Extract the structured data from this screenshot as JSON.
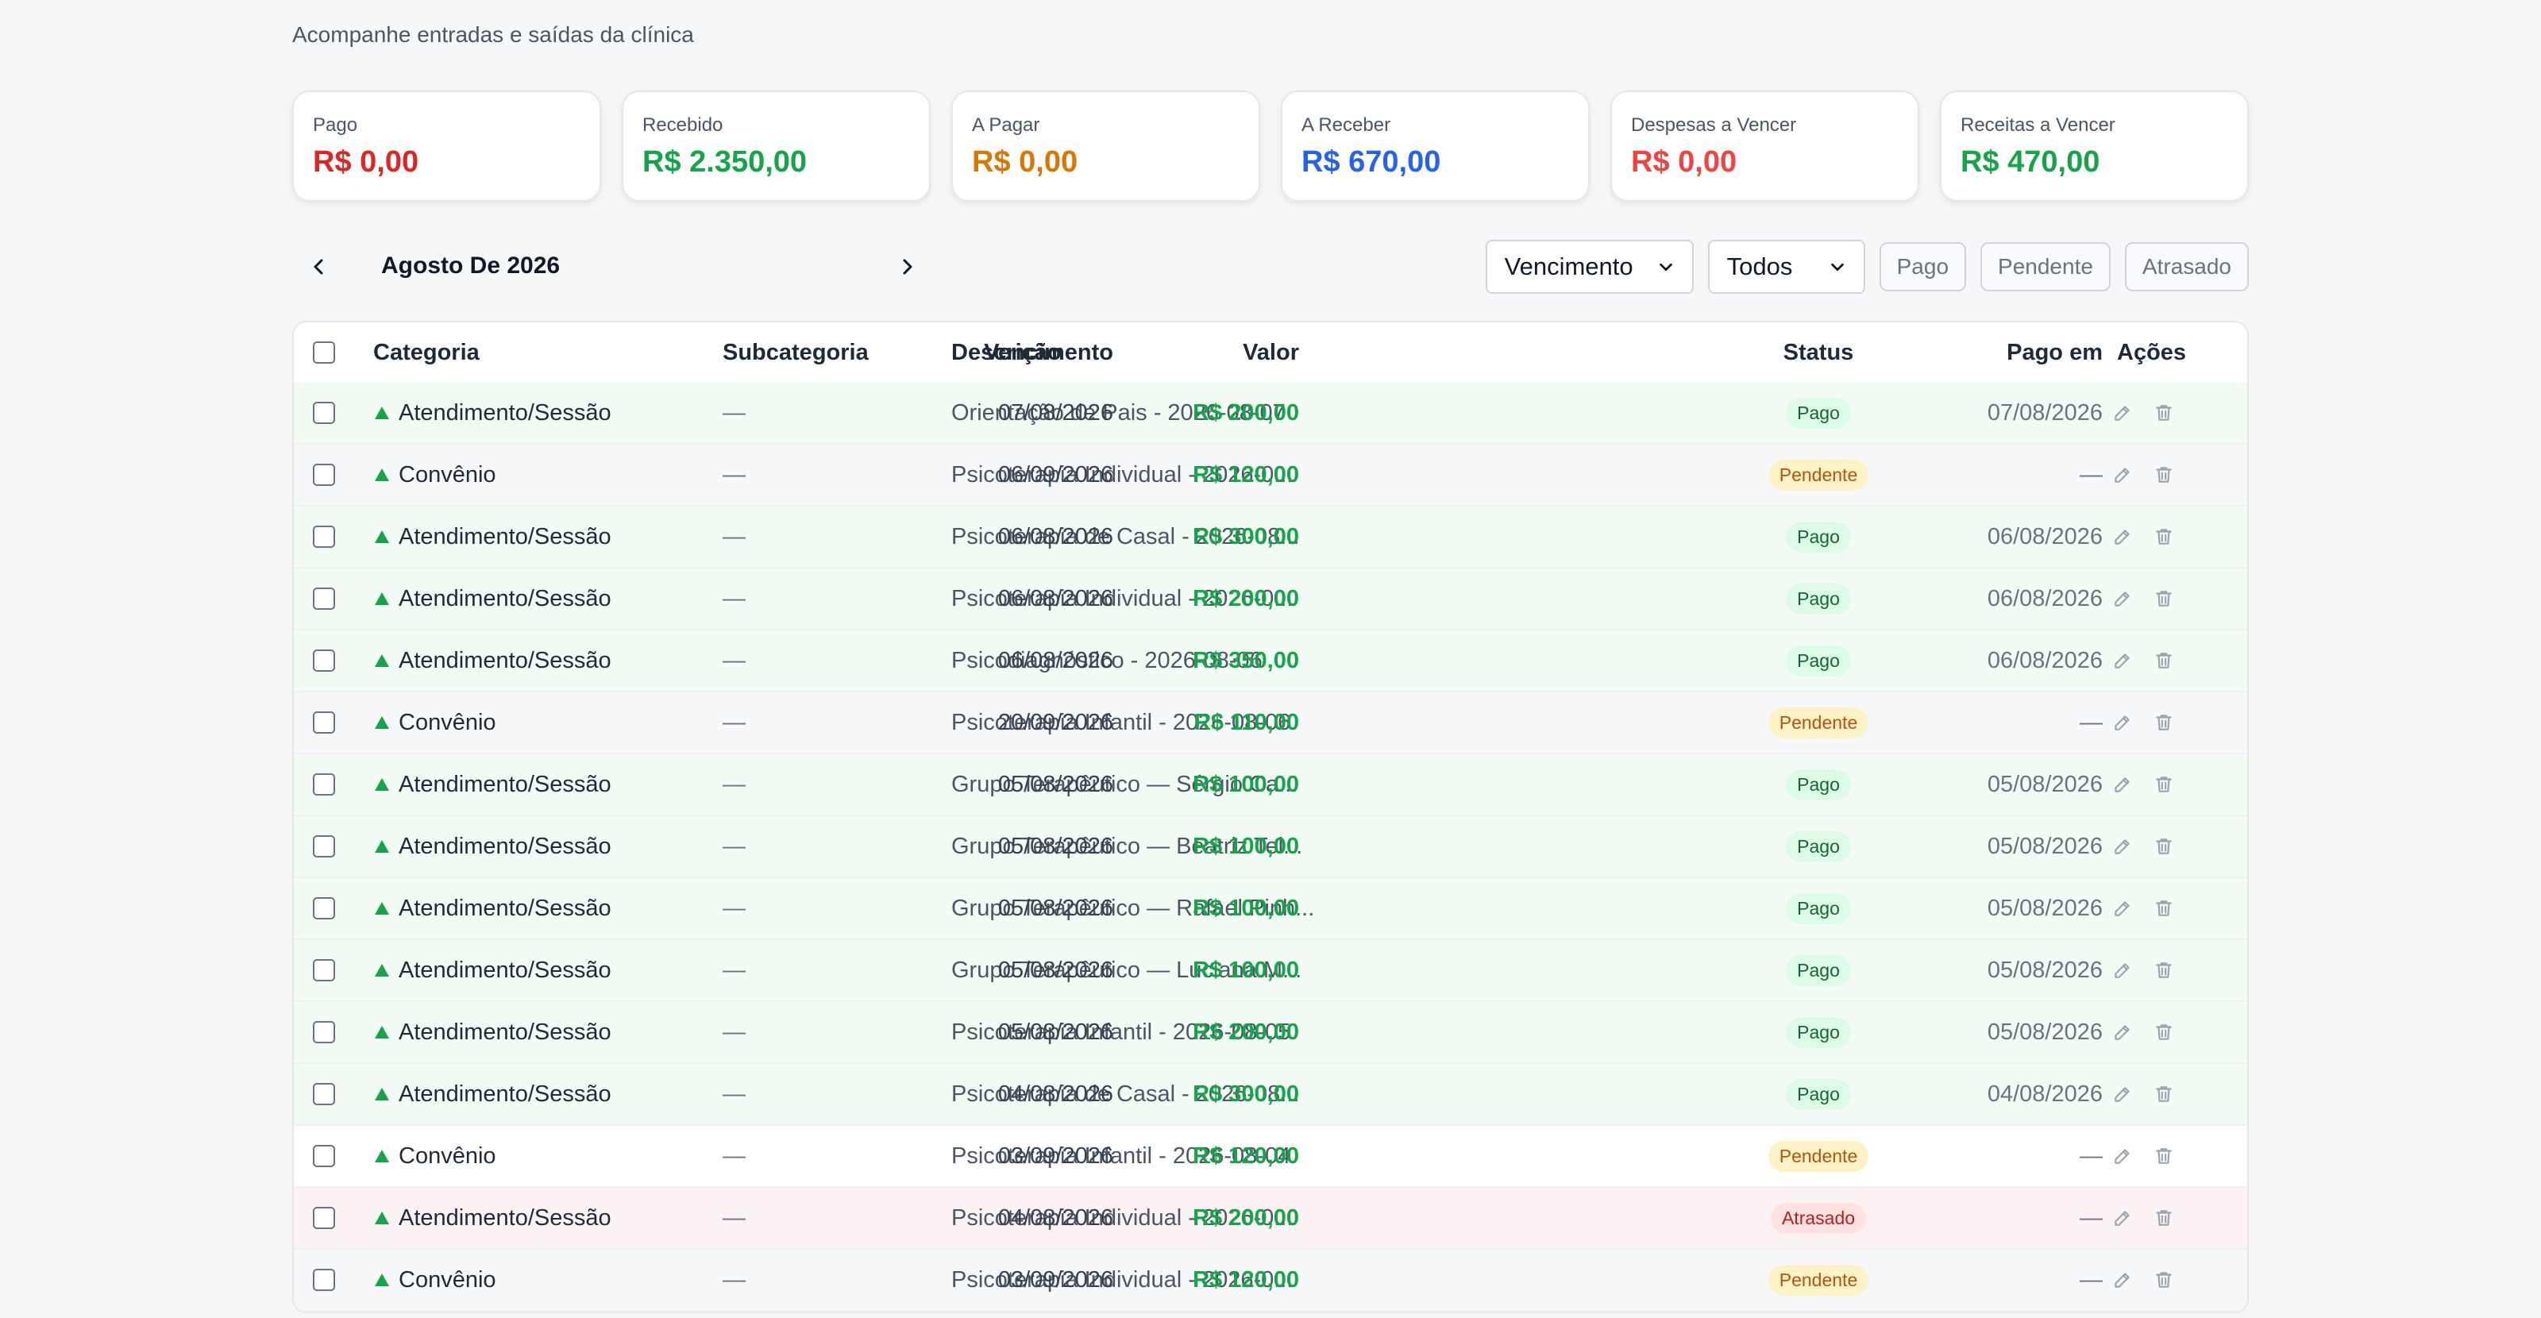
{
  "page": {
    "subtitle": "Acompanhe entradas e saídas da clínica"
  },
  "cards": [
    {
      "label": "Pago",
      "value": "R$ 0,00",
      "color": "#dc2626"
    },
    {
      "label": "Recebido",
      "value": "R$ 2.350,00",
      "color": "#16a34a"
    },
    {
      "label": "A Pagar",
      "value": "R$ 0,00",
      "color": "#d97706"
    },
    {
      "label": "A Receber",
      "value": "R$ 670,00",
      "color": "#2563eb"
    },
    {
      "label": "Despesas a Vencer",
      "value": "R$ 0,00",
      "color": "#ef4444"
    },
    {
      "label": "Receitas a Vencer",
      "value": "R$ 470,00",
      "color": "#16a34a"
    }
  ],
  "toolbar": {
    "month_label": "Agosto De 2026",
    "date_filter": "Vencimento",
    "type_filter": "Todos",
    "chips": [
      "Pago",
      "Pendente",
      "Atrasado"
    ]
  },
  "table": {
    "headers": {
      "categoria": "Categoria",
      "subcategoria": "Subcategoria",
      "descricao": "Descrição",
      "vencimento": "Vencimento",
      "valor": "Valor",
      "status": "Status",
      "pago_em": "Pago em",
      "acoes": "Ações"
    },
    "rows": [
      {
        "categoria": "Atendimento/Sessão",
        "subcategoria": "—",
        "descricao": "Orientação de Pais - 2026-08-07",
        "vencimento": "07/08/2026",
        "valor": "R$ 200,00",
        "status": "Pago",
        "pago_em": "07/08/2026"
      },
      {
        "categoria": "Convênio",
        "subcategoria": "—",
        "descricao": "Psicoterapia Individual - 2026-0...",
        "vencimento": "06/09/2026",
        "valor": "R$ 120,00",
        "status": "Pendente",
        "pago_em": "—"
      },
      {
        "categoria": "Atendimento/Sessão",
        "subcategoria": "—",
        "descricao": "Psicoterapia de Casal - 2026-08...",
        "vencimento": "06/08/2026",
        "valor": "R$ 300,00",
        "status": "Pago",
        "pago_em": "06/08/2026"
      },
      {
        "categoria": "Atendimento/Sessão",
        "subcategoria": "—",
        "descricao": "Psicoterapia Individual - 2026-0...",
        "vencimento": "06/08/2026",
        "valor": "R$ 200,00",
        "status": "Pago",
        "pago_em": "06/08/2026"
      },
      {
        "categoria": "Atendimento/Sessão",
        "subcategoria": "—",
        "descricao": "Psicodiagnóstico - 2026-08-06",
        "vencimento": "06/08/2026",
        "valor": "R$ 350,00",
        "status": "Pago",
        "pago_em": "06/08/2026"
      },
      {
        "categoria": "Convênio",
        "subcategoria": "—",
        "descricao": "Psicoterapia Infantil - 2026-08-06",
        "vencimento": "20/09/2026",
        "valor": "R$ 110,00",
        "status": "Pendente",
        "pago_em": "—"
      },
      {
        "categoria": "Atendimento/Sessão",
        "subcategoria": "—",
        "descricao": "Grupo Terapêutico — Sérgio Ca...",
        "vencimento": "05/08/2026",
        "valor": "R$ 100,00",
        "status": "Pago",
        "pago_em": "05/08/2026"
      },
      {
        "categoria": "Atendimento/Sessão",
        "subcategoria": "—",
        "descricao": "Grupo Terapêutico — Beatriz Tel...",
        "vencimento": "05/08/2026",
        "valor": "R$ 100,00",
        "status": "Pago",
        "pago_em": "05/08/2026"
      },
      {
        "categoria": "Atendimento/Sessão",
        "subcategoria": "—",
        "descricao": "Grupo Terapêutico — Rafael Pinh...",
        "vencimento": "05/08/2026",
        "valor": "R$ 100,00",
        "status": "Pago",
        "pago_em": "05/08/2026"
      },
      {
        "categoria": "Atendimento/Sessão",
        "subcategoria": "—",
        "descricao": "Grupo Terapêutico — Luciana M...",
        "vencimento": "05/08/2026",
        "valor": "R$ 100,00",
        "status": "Pago",
        "pago_em": "05/08/2026"
      },
      {
        "categoria": "Atendimento/Sessão",
        "subcategoria": "—",
        "descricao": "Psicoterapia Infantil - 2026-08-05",
        "vencimento": "05/08/2026",
        "valor": "R$ 200,00",
        "status": "Pago",
        "pago_em": "05/08/2026"
      },
      {
        "categoria": "Atendimento/Sessão",
        "subcategoria": "—",
        "descricao": "Psicoterapia de Casal - 2026-08...",
        "vencimento": "04/08/2026",
        "valor": "R$ 300,00",
        "status": "Pago",
        "pago_em": "04/08/2026"
      },
      {
        "categoria": "Convênio",
        "subcategoria": "—",
        "descricao": "Psicoterapia Infantil - 2026-08-04",
        "vencimento": "03/09/2026",
        "valor": "R$ 120,00",
        "status": "Pendente",
        "pago_em": "—"
      },
      {
        "categoria": "Atendimento/Sessão",
        "subcategoria": "—",
        "descricao": "Psicoterapia Individual - 2026-0...",
        "vencimento": "04/08/2026",
        "valor": "R$ 200,00",
        "status": "Atrasado",
        "pago_em": "—"
      },
      {
        "categoria": "Convênio",
        "subcategoria": "—",
        "descricao": "Psicoterapia Individual - 2026-0...",
        "vencimento": "03/09/2026",
        "valor": "R$ 120,00",
        "status": "Pendente",
        "pago_em": "—"
      }
    ]
  },
  "colors": {
    "income_green": "#16a34a",
    "paid_badge_bg": "#dcfce7",
    "pending_badge_bg": "#fef3c7",
    "late_badge_bg": "#fee2e2"
  }
}
